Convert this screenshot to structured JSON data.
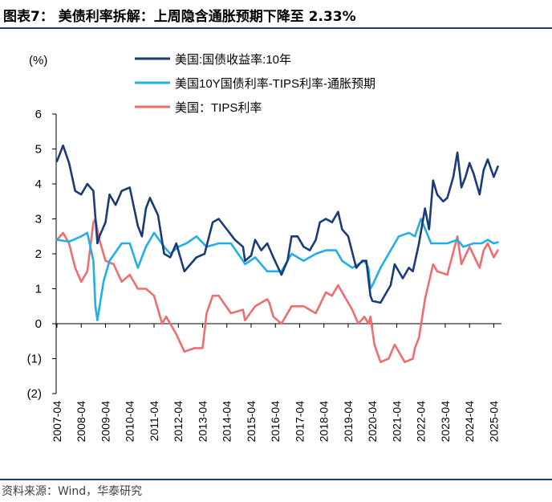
{
  "header": {
    "title": "图表7：  美债利率拆解：上周隐含通胀预期下降至 2.33%"
  },
  "footer": {
    "source": "资料来源：Wind，华泰研究"
  },
  "colors": {
    "nominal": "#1a3a78",
    "breakeven": "#22aee8",
    "tips": "#ee6e6e",
    "accent": "#1f3d7a"
  },
  "chart_data": {
    "type": "line",
    "title": "",
    "xlabel": "",
    "ylabel": "(%)",
    "ylim": [
      -2,
      6
    ],
    "yticks": [
      6,
      5,
      4,
      3,
      2,
      1,
      0,
      -1,
      -2
    ],
    "ytick_labels": [
      "6",
      "5",
      "4",
      "3",
      "2",
      "1",
      "0",
      "(1)",
      "(2)"
    ],
    "xlim": [
      "2007-04",
      "2025-07"
    ],
    "xtick_labels": [
      "2007-04",
      "2008-04",
      "2009-04",
      "2010-04",
      "2011-04",
      "2012-04",
      "2013-04",
      "2014-04",
      "2015-04",
      "2016-04",
      "2017-04",
      "2018-04",
      "2019-04",
      "2020-04",
      "2021-04",
      "2022-04",
      "2023-04",
      "2024-04",
      "2025-04"
    ],
    "legend_position": "top",
    "grid": false,
    "series": [
      {
        "name": "美国:国债收益率:10年",
        "color_key": "nominal",
        "x": [
          "2007-04",
          "2007-07",
          "2007-10",
          "2008-01",
          "2008-04",
          "2008-07",
          "2008-10",
          "2008-12",
          "2009-01",
          "2009-04",
          "2009-06",
          "2009-09",
          "2009-12",
          "2010-04",
          "2010-08",
          "2010-10",
          "2010-12",
          "2011-02",
          "2011-06",
          "2011-09",
          "2011-12",
          "2012-03",
          "2012-07",
          "2012-10",
          "2013-01",
          "2013-05",
          "2013-09",
          "2013-12",
          "2014-04",
          "2014-08",
          "2014-12",
          "2015-01",
          "2015-04",
          "2015-06",
          "2015-09",
          "2015-12",
          "2016-03",
          "2016-07",
          "2016-10",
          "2016-12",
          "2017-03",
          "2017-06",
          "2017-09",
          "2017-12",
          "2018-02",
          "2018-05",
          "2018-08",
          "2018-11",
          "2019-01",
          "2019-04",
          "2019-08",
          "2019-11",
          "2020-01",
          "2020-03",
          "2020-04",
          "2020-08",
          "2020-11",
          "2021-01",
          "2021-03",
          "2021-07",
          "2021-10",
          "2021-12",
          "2022-03",
          "2022-06",
          "2022-08",
          "2022-10",
          "2022-12",
          "2023-03",
          "2023-05",
          "2023-08",
          "2023-10",
          "2023-12",
          "2024-02",
          "2024-04",
          "2024-06",
          "2024-09",
          "2024-11",
          "2025-01",
          "2025-04",
          "2025-06"
        ],
        "values": [
          4.65,
          5.1,
          4.6,
          3.8,
          3.7,
          4.0,
          3.8,
          2.3,
          2.5,
          2.9,
          3.7,
          3.4,
          3.8,
          3.9,
          2.8,
          2.5,
          3.3,
          3.6,
          3.1,
          2.0,
          1.9,
          2.3,
          1.5,
          1.7,
          1.9,
          2.0,
          2.9,
          3.0,
          2.7,
          2.4,
          2.2,
          1.8,
          1.95,
          2.4,
          2.1,
          2.3,
          1.9,
          1.4,
          1.8,
          2.5,
          2.5,
          2.2,
          2.1,
          2.4,
          2.9,
          3.0,
          2.9,
          3.2,
          2.7,
          2.5,
          1.6,
          1.8,
          1.8,
          0.8,
          0.65,
          0.6,
          0.9,
          1.1,
          1.7,
          1.3,
          1.6,
          1.5,
          2.3,
          3.3,
          2.7,
          4.1,
          3.7,
          3.5,
          3.6,
          4.2,
          4.9,
          3.9,
          4.2,
          4.6,
          4.3,
          3.7,
          4.4,
          4.7,
          4.2,
          4.5
        ]
      },
      {
        "name": "美国10Y国债利率-TIPS利率-通胀预期",
        "color_key": "breakeven",
        "x": [
          "2007-04",
          "2007-10",
          "2008-04",
          "2008-07",
          "2008-10",
          "2008-11",
          "2008-12",
          "2009-03",
          "2009-06",
          "2009-12",
          "2010-04",
          "2010-08",
          "2010-12",
          "2011-04",
          "2011-09",
          "2011-12",
          "2012-04",
          "2012-08",
          "2013-01",
          "2013-06",
          "2013-12",
          "2014-06",
          "2014-12",
          "2015-01",
          "2015-06",
          "2015-12",
          "2016-02",
          "2016-07",
          "2016-12",
          "2017-06",
          "2017-12",
          "2018-05",
          "2018-10",
          "2019-01",
          "2019-06",
          "2019-12",
          "2020-02",
          "2020-03",
          "2020-04",
          "2020-08",
          "2020-12",
          "2021-05",
          "2021-10",
          "2022-01",
          "2022-04",
          "2022-09",
          "2022-12",
          "2023-05",
          "2023-10",
          "2024-01",
          "2024-06",
          "2024-10",
          "2025-01",
          "2025-04",
          "2025-06"
        ],
        "values": [
          2.4,
          2.35,
          2.5,
          2.6,
          1.8,
          0.5,
          0.1,
          1.2,
          1.8,
          2.3,
          2.3,
          1.6,
          2.2,
          2.6,
          2.2,
          2.0,
          2.2,
          2.3,
          2.5,
          2.2,
          2.3,
          2.3,
          1.8,
          1.7,
          1.9,
          1.5,
          1.5,
          1.5,
          2.0,
          1.8,
          2.0,
          2.1,
          2.1,
          1.8,
          1.6,
          1.8,
          1.6,
          1.0,
          1.1,
          1.6,
          2.0,
          2.5,
          2.6,
          2.5,
          3.0,
          2.3,
          2.3,
          2.3,
          2.4,
          2.2,
          2.3,
          2.3,
          2.4,
          2.3,
          2.33
        ]
      },
      {
        "name": "美国：TIPS利率",
        "color_key": "tips",
        "x": [
          "2007-04",
          "2007-07",
          "2007-10",
          "2008-01",
          "2008-04",
          "2008-07",
          "2008-10",
          "2008-11",
          "2009-01",
          "2009-04",
          "2009-08",
          "2009-12",
          "2010-04",
          "2010-08",
          "2010-12",
          "2011-04",
          "2011-08",
          "2011-10",
          "2011-12",
          "2012-03",
          "2012-07",
          "2012-12",
          "2013-04",
          "2013-06",
          "2013-09",
          "2013-12",
          "2014-06",
          "2014-12",
          "2015-01",
          "2015-06",
          "2015-12",
          "2016-01",
          "2016-03",
          "2016-07",
          "2016-12",
          "2017-06",
          "2017-12",
          "2018-05",
          "2018-08",
          "2018-11",
          "2019-01",
          "2019-06",
          "2019-09",
          "2019-12",
          "2020-02",
          "2020-03",
          "2020-05",
          "2020-08",
          "2020-12",
          "2021-03",
          "2021-08",
          "2021-12",
          "2022-01",
          "2022-03",
          "2022-06",
          "2022-10",
          "2022-12",
          "2023-05",
          "2023-10",
          "2023-12",
          "2024-04",
          "2024-09",
          "2024-11",
          "2025-01",
          "2025-04",
          "2025-06"
        ],
        "values": [
          2.4,
          2.6,
          2.3,
          1.6,
          1.2,
          1.5,
          2.9,
          3.0,
          2.4,
          1.8,
          1.7,
          1.2,
          1.4,
          1.0,
          1.0,
          0.8,
          0.0,
          0.2,
          0.0,
          -0.3,
          -0.8,
          -0.7,
          -0.7,
          0.3,
          0.8,
          0.8,
          0.3,
          0.4,
          0.1,
          0.5,
          0.7,
          0.6,
          0.2,
          0.0,
          0.5,
          0.5,
          0.3,
          0.9,
          0.8,
          1.1,
          0.9,
          0.4,
          0.0,
          0.2,
          0.0,
          0.2,
          -0.6,
          -1.1,
          -1.0,
          -0.6,
          -1.1,
          -1.0,
          -0.7,
          -0.4,
          0.7,
          1.7,
          1.5,
          1.4,
          2.5,
          1.7,
          2.2,
          1.6,
          2.1,
          2.3,
          1.9,
          2.1
        ]
      }
    ]
  }
}
